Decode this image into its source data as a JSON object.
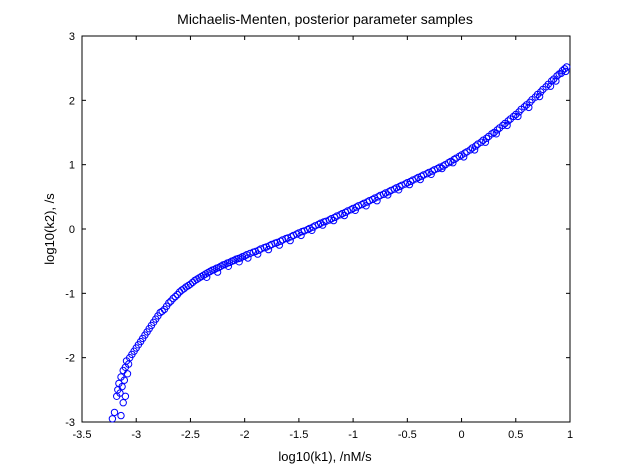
{
  "chart_data": {
    "type": "scatter",
    "title": "Michaelis-Menten, posterior parameter samples",
    "xlabel": "log10(k1), /nM/s",
    "ylabel": "log10(k2), /s",
    "xlim": [
      -3.5,
      1
    ],
    "ylim": [
      -3,
      3
    ],
    "xticks": [
      -3.5,
      -3,
      -2.5,
      -2,
      -1.5,
      -1,
      -0.5,
      0,
      0.5,
      1
    ],
    "xtick_labels": [
      "-3.5",
      "-3",
      "-2.5",
      "-2",
      "-1.5",
      "-1",
      "-0.5",
      "0",
      "0.5",
      "1"
    ],
    "yticks": [
      -3,
      -2,
      -1,
      0,
      1,
      2,
      3
    ],
    "ytick_labels": [
      "-3",
      "-2",
      "-1",
      "0",
      "1",
      "2",
      "3"
    ],
    "grid": false,
    "marker": "open-circle",
    "marker_color": "#0000ff",
    "series": [
      {
        "values": [
          [
            -3.22,
            -2.95
          ],
          [
            -3.2,
            -2.85
          ],
          [
            -3.18,
            -2.6
          ],
          [
            -3.17,
            -2.5
          ],
          [
            -3.16,
            -2.4
          ],
          [
            -3.15,
            -2.55
          ],
          [
            -3.14,
            -2.3
          ],
          [
            -3.13,
            -2.45
          ],
          [
            -3.12,
            -2.2
          ],
          [
            -3.11,
            -2.35
          ],
          [
            -3.1,
            -2.15
          ],
          [
            -3.09,
            -2.05
          ],
          [
            -3.1,
            -2.6
          ],
          [
            -3.12,
            -2.7
          ],
          [
            -3.14,
            -2.9
          ],
          [
            -3.08,
            -2.25
          ],
          [
            -3.07,
            -2.1
          ],
          [
            -3.06,
            -2.0
          ],
          [
            -3.04,
            -1.95
          ],
          [
            -3.02,
            -1.9
          ],
          [
            -3.0,
            -1.85
          ],
          [
            -2.98,
            -1.8
          ],
          [
            -2.96,
            -1.75
          ],
          [
            -2.94,
            -1.7
          ],
          [
            -2.92,
            -1.65
          ],
          [
            -2.9,
            -1.6
          ],
          [
            -2.88,
            -1.55
          ],
          [
            -2.86,
            -1.5
          ],
          [
            -2.84,
            -1.45
          ],
          [
            -2.82,
            -1.4
          ],
          [
            -2.8,
            -1.35
          ],
          [
            -2.78,
            -1.3
          ],
          [
            -2.76,
            -1.28
          ],
          [
            -2.74,
            -1.25
          ],
          [
            -2.72,
            -1.2
          ],
          [
            -2.7,
            -1.15
          ],
          [
            -2.68,
            -1.12
          ],
          [
            -2.66,
            -1.08
          ],
          [
            -2.64,
            -1.05
          ],
          [
            -2.62,
            -1.02
          ],
          [
            -2.6,
            -0.98
          ],
          [
            -2.58,
            -0.95
          ],
          [
            -2.56,
            -0.93
          ],
          [
            -2.54,
            -0.9
          ],
          [
            -2.52,
            -0.88
          ],
          [
            -2.5,
            -0.86
          ],
          [
            -2.48,
            -0.83
          ],
          [
            -2.46,
            -0.8
          ],
          [
            -2.44,
            -0.78
          ],
          [
            -2.42,
            -0.76
          ],
          [
            -2.4,
            -0.74
          ],
          [
            -2.38,
            -0.72
          ],
          [
            -2.36,
            -0.7
          ],
          [
            -2.34,
            -0.68
          ],
          [
            -2.32,
            -0.66
          ],
          [
            -2.3,
            -0.64
          ],
          [
            -2.28,
            -0.63
          ],
          [
            -2.26,
            -0.61
          ],
          [
            -2.24,
            -0.6
          ],
          [
            -2.22,
            -0.58
          ],
          [
            -2.2,
            -0.56
          ],
          [
            -2.18,
            -0.55
          ],
          [
            -2.16,
            -0.53
          ],
          [
            -2.14,
            -0.52
          ],
          [
            -2.12,
            -0.5
          ],
          [
            -2.1,
            -0.49
          ],
          [
            -2.08,
            -0.47
          ],
          [
            -2.06,
            -0.46
          ],
          [
            -2.04,
            -0.45
          ],
          [
            -2.02,
            -0.43
          ],
          [
            -2.0,
            -0.42
          ],
          [
            -1.98,
            -0.4
          ],
          [
            -1.95,
            -0.38
          ],
          [
            -1.92,
            -0.36
          ],
          [
            -1.9,
            -0.35
          ],
          [
            -1.87,
            -0.33
          ],
          [
            -1.85,
            -0.31
          ],
          [
            -1.82,
            -0.29
          ],
          [
            -1.8,
            -0.28
          ],
          [
            -1.77,
            -0.26
          ],
          [
            -1.75,
            -0.24
          ],
          [
            -1.72,
            -0.22
          ],
          [
            -1.7,
            -0.21
          ],
          [
            -1.67,
            -0.19
          ],
          [
            -1.65,
            -0.17
          ],
          [
            -1.62,
            -0.15
          ],
          [
            -1.6,
            -0.14
          ],
          [
            -1.57,
            -0.12
          ],
          [
            -1.55,
            -0.1
          ],
          [
            -1.52,
            -0.08
          ],
          [
            -1.5,
            -0.06
          ],
          [
            -1.47,
            -0.04
          ],
          [
            -1.45,
            -0.03
          ],
          [
            -1.42,
            -0.01
          ],
          [
            -1.4,
            0.01
          ],
          [
            -1.37,
            0.03
          ],
          [
            -1.35,
            0.05
          ],
          [
            -1.32,
            0.07
          ],
          [
            -1.3,
            0.09
          ],
          [
            -1.27,
            0.11
          ],
          [
            -1.25,
            0.12
          ],
          [
            -1.22,
            0.14
          ],
          [
            -1.2,
            0.16
          ],
          [
            -1.17,
            0.18
          ],
          [
            -1.15,
            0.2
          ],
          [
            -1.12,
            0.22
          ],
          [
            -1.1,
            0.24
          ],
          [
            -1.07,
            0.26
          ],
          [
            -1.05,
            0.28
          ],
          [
            -1.02,
            0.3
          ],
          [
            -1.0,
            0.32
          ],
          [
            -0.97,
            0.34
          ],
          [
            -0.95,
            0.36
          ],
          [
            -0.92,
            0.38
          ],
          [
            -0.9,
            0.4
          ],
          [
            -0.87,
            0.42
          ],
          [
            -0.85,
            0.44
          ],
          [
            -0.82,
            0.46
          ],
          [
            -0.8,
            0.48
          ],
          [
            -0.77,
            0.5
          ],
          [
            -0.75,
            0.52
          ],
          [
            -0.72,
            0.54
          ],
          [
            -0.7,
            0.56
          ],
          [
            -0.67,
            0.58
          ],
          [
            -0.65,
            0.6
          ],
          [
            -0.62,
            0.62
          ],
          [
            -0.6,
            0.64
          ],
          [
            -0.57,
            0.66
          ],
          [
            -0.55,
            0.68
          ],
          [
            -0.52,
            0.7
          ],
          [
            -0.5,
            0.72
          ],
          [
            -0.47,
            0.74
          ],
          [
            -0.45,
            0.76
          ],
          [
            -0.42,
            0.78
          ],
          [
            -0.4,
            0.8
          ],
          [
            -0.37,
            0.82
          ],
          [
            -0.35,
            0.84
          ],
          [
            -0.32,
            0.86
          ],
          [
            -0.3,
            0.88
          ],
          [
            -0.27,
            0.9
          ],
          [
            -0.25,
            0.92
          ],
          [
            -0.22,
            0.94
          ],
          [
            -0.2,
            0.96
          ],
          [
            -0.17,
            0.98
          ],
          [
            -0.15,
            1.0
          ],
          [
            -0.12,
            1.03
          ],
          [
            -0.1,
            1.05
          ],
          [
            -0.07,
            1.08
          ],
          [
            -0.05,
            1.1
          ],
          [
            -0.02,
            1.13
          ],
          [
            0.0,
            1.15
          ],
          [
            0.03,
            1.18
          ],
          [
            0.05,
            1.2
          ],
          [
            0.08,
            1.23
          ],
          [
            0.1,
            1.26
          ],
          [
            0.13,
            1.29
          ],
          [
            0.15,
            1.32
          ],
          [
            0.18,
            1.35
          ],
          [
            0.2,
            1.38
          ],
          [
            0.23,
            1.41
          ],
          [
            0.25,
            1.44
          ],
          [
            0.28,
            1.48
          ],
          [
            0.3,
            1.5
          ],
          [
            0.33,
            1.54
          ],
          [
            0.35,
            1.57
          ],
          [
            0.38,
            1.61
          ],
          [
            0.4,
            1.64
          ],
          [
            0.43,
            1.68
          ],
          [
            0.45,
            1.71
          ],
          [
            0.48,
            1.75
          ],
          [
            0.5,
            1.78
          ],
          [
            0.53,
            1.82
          ],
          [
            0.55,
            1.86
          ],
          [
            0.58,
            1.9
          ],
          [
            0.6,
            1.93
          ],
          [
            0.63,
            1.97
          ],
          [
            0.65,
            2.01
          ],
          [
            0.68,
            2.05
          ],
          [
            0.7,
            2.09
          ],
          [
            0.73,
            2.13
          ],
          [
            0.75,
            2.17
          ],
          [
            0.78,
            2.21
          ],
          [
            0.8,
            2.25
          ],
          [
            0.83,
            2.3
          ],
          [
            0.85,
            2.33
          ],
          [
            0.88,
            2.38
          ],
          [
            0.9,
            2.41
          ],
          [
            0.93,
            2.46
          ],
          [
            0.95,
            2.49
          ],
          [
            0.97,
            2.52
          ],
          [
            0.96,
            2.45
          ],
          [
            0.92,
            2.42
          ],
          [
            -2.35,
            -0.75
          ],
          [
            -2.25,
            -0.67
          ],
          [
            -2.15,
            -0.58
          ],
          [
            -2.05,
            -0.51
          ],
          [
            -1.97,
            -0.45
          ],
          [
            -1.88,
            -0.39
          ],
          [
            -1.78,
            -0.32
          ],
          [
            -1.68,
            -0.25
          ],
          [
            -1.58,
            -0.18
          ],
          [
            -1.48,
            -0.1
          ],
          [
            -1.38,
            -0.02
          ],
          [
            -1.28,
            0.06
          ],
          [
            -1.18,
            0.13
          ],
          [
            -1.08,
            0.21
          ],
          [
            -0.98,
            0.29
          ],
          [
            -0.88,
            0.36
          ],
          [
            -0.78,
            0.44
          ],
          [
            -0.68,
            0.53
          ],
          [
            -0.58,
            0.61
          ],
          [
            -0.48,
            0.69
          ],
          [
            -0.38,
            0.77
          ],
          [
            -0.28,
            0.85
          ],
          [
            -0.18,
            0.94
          ],
          [
            -0.08,
            1.03
          ],
          [
            0.02,
            1.12
          ],
          [
            0.12,
            1.23
          ],
          [
            0.22,
            1.35
          ],
          [
            0.32,
            1.48
          ],
          [
            0.42,
            1.61
          ],
          [
            0.52,
            1.75
          ],
          [
            0.62,
            1.89
          ],
          [
            0.72,
            2.06
          ],
          [
            0.82,
            2.22
          ],
          [
            0.87,
            2.3
          ]
        ]
      }
    ]
  }
}
